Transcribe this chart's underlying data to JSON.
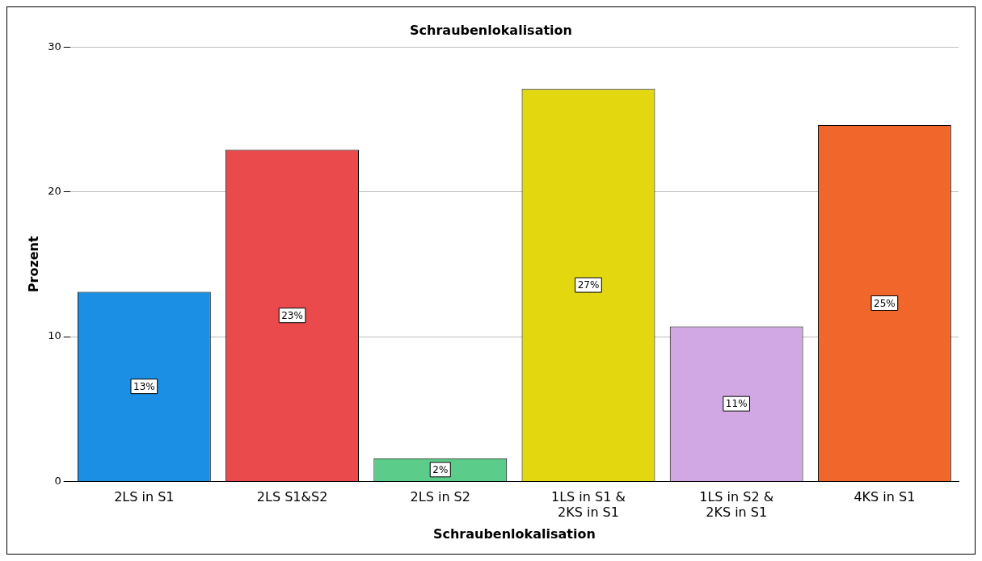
{
  "chart_data": {
    "type": "bar",
    "title": "Schraubenlokalisation",
    "xlabel": "Schraubenlokalisation",
    "ylabel": "Prozent",
    "categories": [
      "2LS in S1",
      "2LS S1&S2",
      "2LS in S2",
      "1LS in S1 &\n2KS in S1",
      "1LS in S2 &\n2KS in S1",
      "4KS in S1"
    ],
    "values": [
      13.1,
      22.9,
      1.6,
      27.1,
      10.7,
      24.6
    ],
    "colors": [
      "#1a8fe3",
      "#eb4a4d",
      "#5ccc8a",
      "#e3d80f",
      "#d1a8e3",
      "#f0662b"
    ],
    "value_labels": [
      "13%",
      "23%",
      "2%",
      "27%",
      "11%",
      "25%"
    ],
    "ylim": [
      0,
      30
    ],
    "yticks": [
      0,
      10,
      20,
      30
    ],
    "grid": "y",
    "legend": false
  }
}
